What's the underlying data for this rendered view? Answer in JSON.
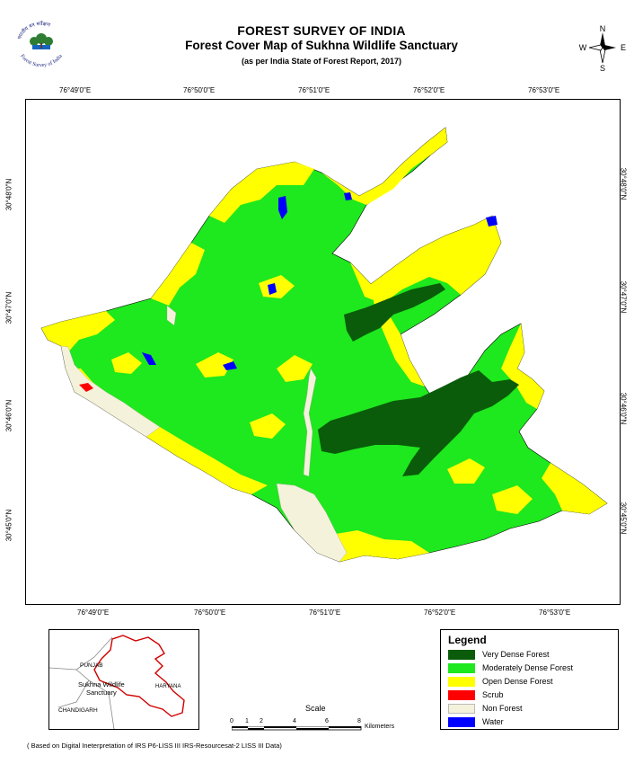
{
  "header": {
    "org": "FOREST SURVEY OF INDIA",
    "title": "Forest Cover Map of Sukhna Wildlife Sanctuary",
    "subtitle": "(as per India State of Forest Report, 2017)",
    "logo_text": "Forest Survey of India",
    "logo_hindi": "भारतीय वन सर्वेक्षण"
  },
  "compass": {
    "n": "N",
    "s": "S",
    "e": "E",
    "w": "W"
  },
  "grid": {
    "top_ticks": [
      "76°49'0\"E",
      "76°50'0\"E",
      "76°51'0\"E",
      "76°52'0\"E",
      "76°53'0\"E"
    ],
    "bottom_ticks": [
      "76°49'0\"E",
      "76°50'0\"E",
      "76°51'0\"E",
      "76°52'0\"E",
      "76°53'0\"E"
    ],
    "left_ticks": [
      "30°48'0\"N",
      "30°47'0\"N",
      "30°46'0\"N",
      "30°45'0\"N"
    ],
    "right_ticks": [
      "30°48'0\"N",
      "30°47'0\"N",
      "30°46'0\"N",
      "30°45'0\"N"
    ]
  },
  "inset": {
    "labels": {
      "punjab": "PUNJAB",
      "sanctuary": "Sukhna Wildlife\nSanctuary",
      "haryana": "HARYANA",
      "chandigarh": "CHANDIGARH"
    }
  },
  "legend": {
    "title": "Legend",
    "items": [
      {
        "label": "Very Dense Forest",
        "color": "#0a5c0a"
      },
      {
        "label": "Moderately Dense Forest",
        "color": "#1ee81e"
      },
      {
        "label": "Open Dense Forest",
        "color": "#ffff00"
      },
      {
        "label": "Scrub",
        "color": "#ff0000"
      },
      {
        "label": "Non Forest",
        "color": "#f5f2dc"
      },
      {
        "label": "Water",
        "color": "#0000ff"
      }
    ]
  },
  "scale": {
    "title": "Scale",
    "ticks": [
      "0",
      "1",
      "2",
      "4",
      "6",
      "8"
    ],
    "unit": "Kilometers"
  },
  "footnote": "( Based on Digital Ineterpretation of IRS P6-LISS III IRS-Resourcesat-2 LISS III Data)"
}
